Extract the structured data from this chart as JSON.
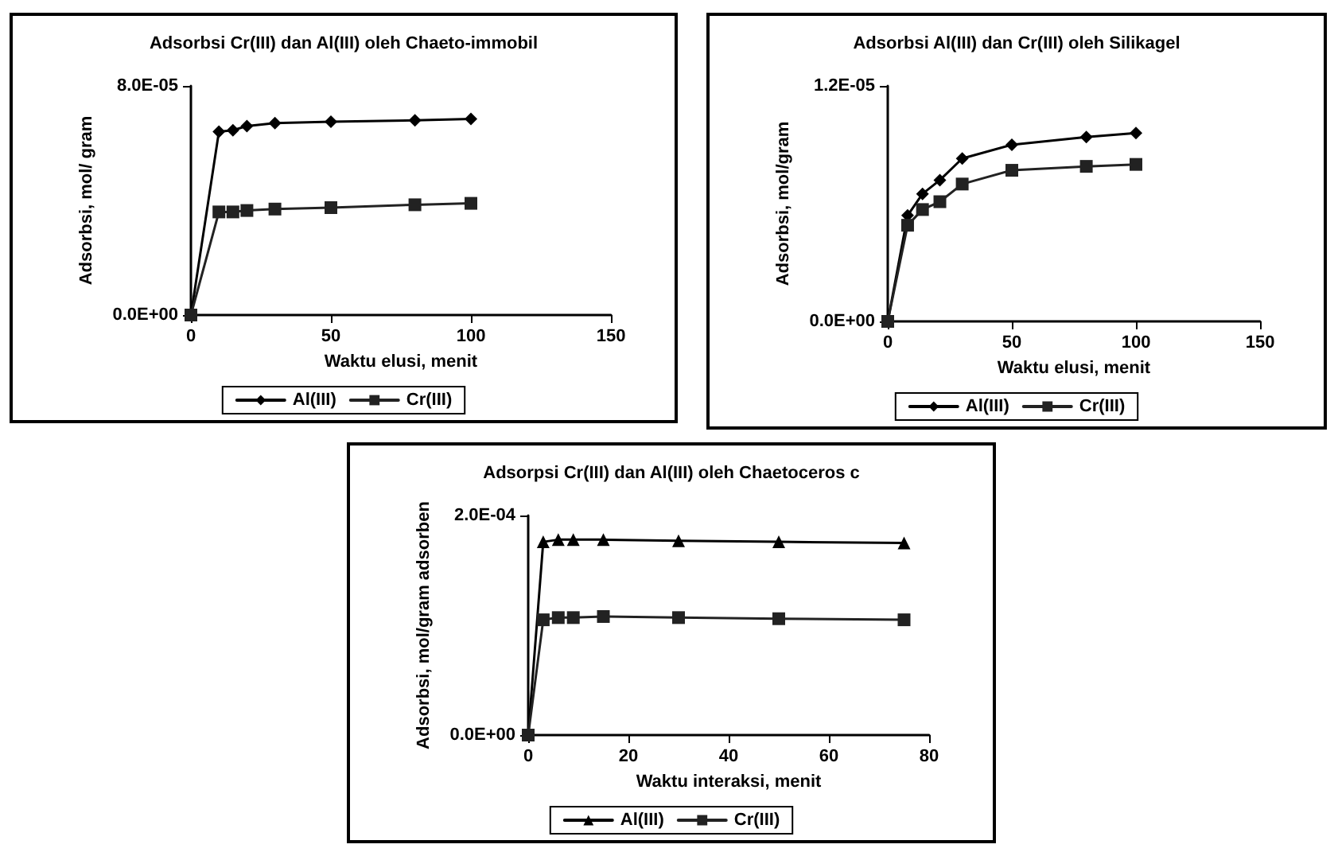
{
  "chart_data": [
    {
      "type": "line",
      "title": "Adsorbsi Cr(III) dan Al(III) oleh Chaeto-immobil",
      "xlabel": "Waktu elusi, menit",
      "ylabel": "Adsorbsi, mol/ gram",
      "x": [
        0,
        10,
        15,
        20,
        30,
        50,
        80,
        100
      ],
      "series": [
        {
          "name": "Al(III)",
          "color": "#000000",
          "marker": "diamond",
          "values": [
            0,
            6.4e-05,
            6.45e-05,
            6.6e-05,
            6.7e-05,
            6.75e-05,
            6.8e-05,
            6.85e-05
          ]
        },
        {
          "name": "Cr(III)",
          "color": "#222222",
          "marker": "square",
          "values": [
            0,
            3.6e-05,
            3.6e-05,
            3.65e-05,
            3.7e-05,
            3.75e-05,
            3.85e-05,
            3.9e-05
          ]
        }
      ],
      "xlim": [
        0,
        150
      ],
      "xticks": [
        0,
        50,
        100,
        150
      ],
      "ylim": [
        0,
        8e-05
      ],
      "yticks": [
        {
          "value": 0,
          "label": "0.0E+00"
        },
        {
          "value": 8e-05,
          "label": "8.0E-05"
        }
      ],
      "grid": false,
      "legend": "bottom",
      "line_style": "solid"
    },
    {
      "type": "line",
      "title": "Adsorbsi Al(III) dan Cr(III) oleh Silikagel",
      "xlabel": "Waktu elusi, menit",
      "ylabel": "Adsorbsi, mol/gram",
      "x": [
        0,
        8,
        14,
        21,
        30,
        50,
        80,
        100
      ],
      "series": [
        {
          "name": "Al(III)",
          "color": "#000000",
          "marker": "diamond",
          "values": [
            0,
            5.4e-06,
            6.5e-06,
            7.2e-06,
            8.3e-06,
            9e-06,
            9.4e-06,
            9.6e-06
          ]
        },
        {
          "name": "Cr(III)",
          "color": "#222222",
          "marker": "square",
          "values": [
            0,
            4.9e-06,
            5.7e-06,
            6.1e-06,
            7e-06,
            7.7e-06,
            7.9e-06,
            8e-06
          ]
        }
      ],
      "xlim": [
        0,
        150
      ],
      "xticks": [
        0,
        50,
        100,
        150
      ],
      "ylim": [
        0,
        1.2e-05
      ],
      "yticks": [
        {
          "value": 0,
          "label": "0.0E+00"
        },
        {
          "value": 1.2e-05,
          "label": "1.2E-05"
        }
      ],
      "grid": false,
      "legend": "bottom",
      "line_style": "solid"
    },
    {
      "type": "line",
      "title": "Adsorpsi Cr(III) dan Al(III) oleh Chaetoceros c",
      "xlabel": "Waktu interaksi, menit",
      "ylabel": "Adsorbsi, mol/gram adsorben",
      "x": [
        0,
        3,
        6,
        9,
        15,
        30,
        50,
        75
      ],
      "series": [
        {
          "name": "Al(III)",
          "color": "#000000",
          "marker": "triangle",
          "values": [
            0,
            0.000176,
            0.000178,
            0.000178,
            0.000178,
            0.000177,
            0.000176,
            0.000175
          ]
        },
        {
          "name": "Cr(III)",
          "color": "#222222",
          "marker": "square",
          "values": [
            0,
            0.000105,
            0.000107,
            0.000107,
            0.000108,
            0.000107,
            0.000106,
            0.000105
          ]
        }
      ],
      "xlim": [
        0,
        80
      ],
      "xticks": [
        0,
        20,
        40,
        60,
        80
      ],
      "ylim": [
        0,
        0.0002
      ],
      "yticks": [
        {
          "value": 0,
          "label": "0.0E+00"
        },
        {
          "value": 0.0002,
          "label": "2.0E-04"
        }
      ],
      "grid": false,
      "legend": "bottom",
      "line_style": "solid"
    }
  ]
}
